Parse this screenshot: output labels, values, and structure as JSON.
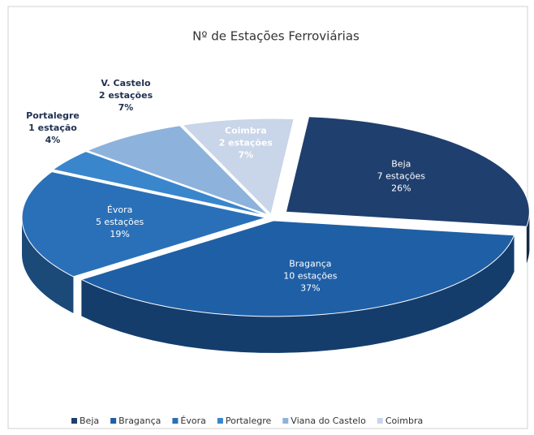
{
  "chart_data": {
    "type": "pie3d",
    "title": "Nº de Estações Ferroviárias",
    "categories": [
      "Beja",
      "Bragança",
      "Évora",
      "Portalegre",
      "Viana do Castelo",
      "Coimbra"
    ],
    "data_label_names": [
      "Beja",
      "Bragança",
      "Évora",
      "Portalegre",
      "V. Castelo",
      "Coimbra"
    ],
    "values": [
      7,
      10,
      5,
      1,
      2,
      2
    ],
    "value_labels": [
      "7 estações",
      "10 estações",
      "5 estações",
      "1 estação",
      "2 estações",
      "2 estações"
    ],
    "percent_labels": [
      "26%",
      "37%",
      "19%",
      "4%",
      "7%",
      "7%"
    ],
    "colors": [
      "#1f3f6e",
      "#1f5fa6",
      "#2a70b8",
      "#3a86cc",
      "#8db2dc",
      "#c9d5e8"
    ],
    "legend": "bottom"
  }
}
